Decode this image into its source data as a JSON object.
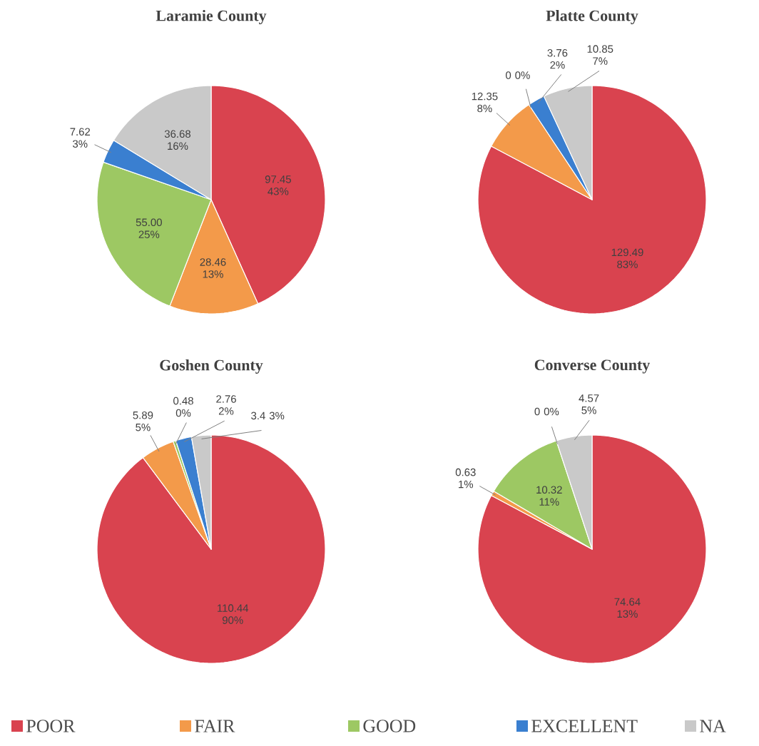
{
  "chart_data": [
    {
      "type": "pie",
      "title": "Laramie County",
      "categories": [
        "POOR",
        "FAIR",
        "GOOD",
        "EXCELLENT",
        "NA"
      ],
      "values": [
        97.45,
        28.46,
        55.0,
        7.62,
        36.68
      ],
      "colors": [
        "#d9434f",
        "#f39a4a",
        "#9dc863",
        "#3a7fd0",
        "#c9c9c9"
      ],
      "value_labels": [
        "97.45 43%",
        "28.46 13%",
        "55.00 25%",
        "7.62 3%",
        "36.68 16%"
      ],
      "legend": "bottom"
    },
    {
      "type": "pie",
      "title": "Platte County",
      "categories": [
        null,
        null,
        null,
        null,
        null
      ],
      "values": [
        129.49,
        12.35,
        0,
        3.76,
        10.85
      ],
      "colors": [
        "#d9434f",
        "#f39a4a",
        "#9dc863",
        "#3a7fd0",
        "#c9c9c9"
      ],
      "value_labels": [
        "129.49 83%",
        "12.35 8%",
        "0 0%",
        "3.76 2%",
        "10.85 7%"
      ]
    },
    {
      "type": "pie",
      "title": "Goshen County",
      "categories": [
        null,
        null,
        null,
        null,
        null
      ],
      "values": [
        110.44,
        5.89,
        0.48,
        2.76,
        3.4
      ],
      "colors": [
        "#d9434f",
        "#f39a4a",
        "#9dc863",
        "#3a7fd0",
        "#c9c9c9"
      ],
      "value_labels": [
        "110.44 90%",
        "5.89 5%",
        "0.48 0%",
        "2.76 2%",
        "3.4 3%"
      ]
    },
    {
      "type": "pie",
      "title": "Converse County",
      "categories": [
        null,
        null,
        null,
        null,
        null
      ],
      "values": [
        74.64,
        0.63,
        10.32,
        0,
        4.57
      ],
      "colors": [
        "#d9434f",
        "#f39a4a",
        "#9dc863",
        "#3a7fd0",
        "#c9c9c9"
      ],
      "value_labels": [
        "74.64 13%",
        "0.63 1%",
        "10.32 11%",
        "0 0%",
        "4.57 5%"
      ]
    }
  ]
}
